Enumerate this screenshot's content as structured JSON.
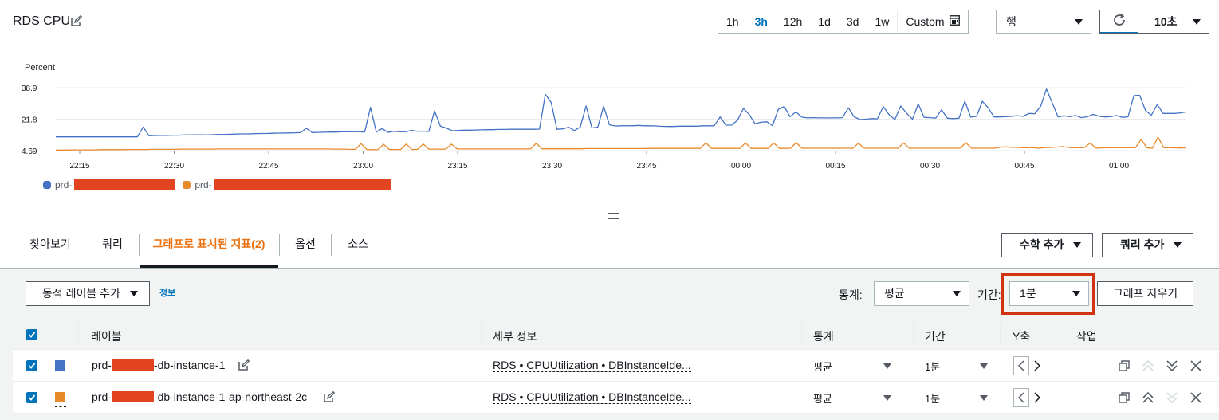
{
  "header": {
    "title": "RDS CPU",
    "time_ranges": [
      "1h",
      "3h",
      "12h",
      "1d",
      "3d",
      "1w"
    ],
    "active_range": "3h",
    "custom_label": "Custom",
    "view_select": "행",
    "refresh_interval": "10초"
  },
  "chart_data": {
    "type": "line",
    "ylabel": "Percent",
    "yticks": [
      "38.9",
      "21.8",
      "4.69"
    ],
    "ylim": [
      4.69,
      38.9
    ],
    "xticks": [
      "22:15",
      "22:30",
      "22:45",
      "23:00",
      "23:15",
      "23:30",
      "23:45",
      "00:00",
      "00:15",
      "00:30",
      "00:45",
      "01:00"
    ],
    "grid": true,
    "legend_placement": "bottom-left",
    "series": [
      {
        "name": "prd-",
        "color": "#4472c4",
        "values": [
          12.2,
          12.2,
          12.2,
          12.2,
          12.2,
          12.2,
          12.2,
          12.2,
          12.2,
          12.2,
          12.2,
          12.2,
          12.2,
          12.2,
          12.2,
          17.5,
          12.8,
          12.9,
          13.0,
          13.0,
          13.1,
          13.1,
          13.2,
          13.2,
          13.3,
          13.3,
          13.2,
          13.4,
          13.5,
          13.5,
          13.6,
          13.7,
          13.8,
          13.8,
          13.9,
          14.0,
          14.0,
          14.1,
          14.2,
          14.2,
          14.3,
          14.4,
          14.5,
          16.8,
          14.5,
          14.6,
          14.7,
          14.8,
          14.8,
          14.9,
          14.9,
          15.0,
          15.0,
          14.8,
          28.2,
          14.8,
          16.7,
          14.6,
          15.2,
          14.9,
          15.0,
          15.7,
          15.2,
          15.3,
          15.1,
          26.3,
          18.0,
          17.0,
          15.5,
          15.7,
          15.8,
          15.8,
          15.9,
          16.0,
          16.1,
          16.1,
          16.2,
          16.2,
          16.3,
          16.3,
          16.3,
          16.3,
          16.3,
          16.4,
          35.3,
          30.9,
          16.3,
          16.5,
          17.4,
          15.6,
          17.5,
          29.0,
          17.0,
          17.5,
          28.8,
          18.7,
          18.1,
          18.2,
          18.3,
          18.2,
          18.4,
          18.2,
          18.2,
          18.1,
          17.9,
          17.8,
          17.8,
          18.0,
          18.0,
          18.0,
          18.0,
          18.2,
          18.2,
          18.2,
          23.0,
          18.5,
          18.6,
          21.3,
          27.6,
          24.3,
          19.3,
          20.1,
          20.4,
          18.3,
          27.2,
          28.7,
          23.1,
          25.8,
          22.9,
          22.5,
          22.6,
          22.5,
          22.5,
          22.5,
          22.5,
          22.6,
          28.0,
          23.1,
          21.6,
          21.8,
          22.1,
          22.0,
          28.7,
          24.2,
          21.6,
          29.0,
          25.0,
          21.8,
          30.1,
          22.8,
          22.6,
          22.4,
          26.9,
          22.3,
          22.1,
          22.3,
          31.5,
          22.9,
          23.3,
          31.5,
          28.0,
          23.0,
          23.0,
          23.2,
          23.3,
          23.7,
          23.3,
          24.9,
          24.8,
          28.8,
          38.1,
          30.6,
          23.0,
          23.6,
          23.2,
          23.8,
          22.6,
          23.1,
          24.4,
          23.4,
          23.0,
          23.2,
          23.8,
          22.8,
          23.1,
          34.6,
          34.8,
          26.5,
          23.9,
          29.8,
          24.9,
          24.9,
          24.9,
          25.2,
          25.8
        ]
      },
      {
        "name": "prd-",
        "color": "#e8892a",
        "values": [
          5.0,
          5.0,
          5.0,
          5.1,
          5.1,
          5.1,
          5.1,
          5.1,
          5.2,
          5.2,
          5.2,
          5.2,
          5.2,
          5.3,
          5.3,
          5.3,
          5.3,
          5.4,
          5.4,
          5.4,
          5.4,
          5.4,
          5.5,
          5.5,
          5.5,
          5.5,
          5.5,
          5.5,
          5.5,
          5.6,
          5.6,
          5.6,
          5.6,
          5.6,
          5.6,
          5.6,
          5.6,
          5.6,
          5.6,
          5.6,
          5.6,
          5.6,
          5.6,
          5.6,
          5.6,
          5.6,
          5.6,
          5.6,
          5.6,
          5.5,
          5.5,
          5.5,
          5.4,
          5.4,
          8.5,
          5.3,
          5.2,
          5.3,
          8.1,
          5.3,
          5.3,
          5.3,
          8.3,
          5.3,
          5.4,
          8.3,
          5.5,
          5.5,
          5.5,
          5.5,
          8.2,
          5.6,
          5.6,
          5.6,
          5.6,
          5.6,
          5.6,
          5.6,
          5.6,
          5.6,
          5.6,
          5.6,
          5.6,
          5.6,
          5.7,
          8.7,
          5.7,
          5.7,
          5.7,
          5.7,
          5.7,
          5.7,
          5.7,
          5.7,
          5.8,
          5.8,
          5.8,
          5.8,
          5.8,
          5.8,
          5.8,
          5.8,
          5.8,
          5.8,
          5.8,
          5.9,
          5.9,
          5.9,
          5.9,
          5.9,
          5.9,
          5.9,
          5.9,
          5.9,
          5.9,
          8.9,
          5.9,
          5.9,
          5.9,
          5.9,
          5.9,
          5.9,
          8.9,
          5.9,
          5.9,
          5.9,
          5.9,
          8.9,
          5.9,
          5.9,
          6.0,
          9.0,
          6.0,
          6.0,
          6.0,
          6.0,
          6.0,
          6.0,
          6.0,
          6.0,
          6.0,
          6.0,
          8.7,
          6.0,
          6.0,
          6.0,
          6.0,
          6.0,
          6.0,
          6.0,
          8.9,
          6.0,
          6.0,
          6.0,
          6.0,
          6.0,
          6.0,
          6.0,
          6.0,
          6.0,
          6.0,
          9.0,
          6.0,
          6.0,
          6.0,
          6.0,
          6.0,
          6.5,
          6.8,
          6.5,
          6.5,
          6.3,
          6.3,
          6.3,
          6.0,
          6.4,
          6.4,
          6.6,
          6.9,
          6.5,
          6.3,
          6.3,
          6.4,
          8.9,
          6.0,
          6.2,
          6.3,
          6.3,
          6.3,
          6.3,
          6.3,
          6.3,
          10.8,
          6.3,
          6.0,
          12.0,
          6.3,
          6.3,
          6.2,
          6.1,
          6.3
        ]
      }
    ]
  },
  "tabs": {
    "items": [
      "찾아보기",
      "쿼리",
      "그래프로 표시된 지표(2)",
      "옵션",
      "소스"
    ],
    "active": 2,
    "math_button": "수학 추가",
    "query_button": "쿼리 추가"
  },
  "toolbar": {
    "dynamic_label_button": "동적 레이블 추가",
    "info_link": "정보",
    "stat_label": "통계:",
    "stat_value": "평균",
    "period_label": "기간:",
    "period_value": "1분",
    "clear_button": "그래프 지우기"
  },
  "table": {
    "headers": [
      "레이블",
      "세부 정보",
      "통계",
      "기간",
      "Y축",
      "작업"
    ],
    "rows": [
      {
        "label_prefix": "prd-",
        "label_suffix": "-db-instance-1",
        "color": "#4472c4",
        "details": "RDS • CPUUtilization • DBInstanceIde...",
        "stat": "평균",
        "period": "1분"
      },
      {
        "label_prefix": "prd-",
        "label_suffix": "-db-instance-1-ap-northeast-2c",
        "color": "#e8892a",
        "details": "RDS • CPUUtilization • DBInstanceIde...",
        "stat": "평균",
        "period": "1분"
      }
    ]
  },
  "colors": {
    "accent": "#0073bb",
    "active_tab": "#ec7211",
    "redaction": "#e2441f",
    "highlight_box": "#d13212"
  }
}
